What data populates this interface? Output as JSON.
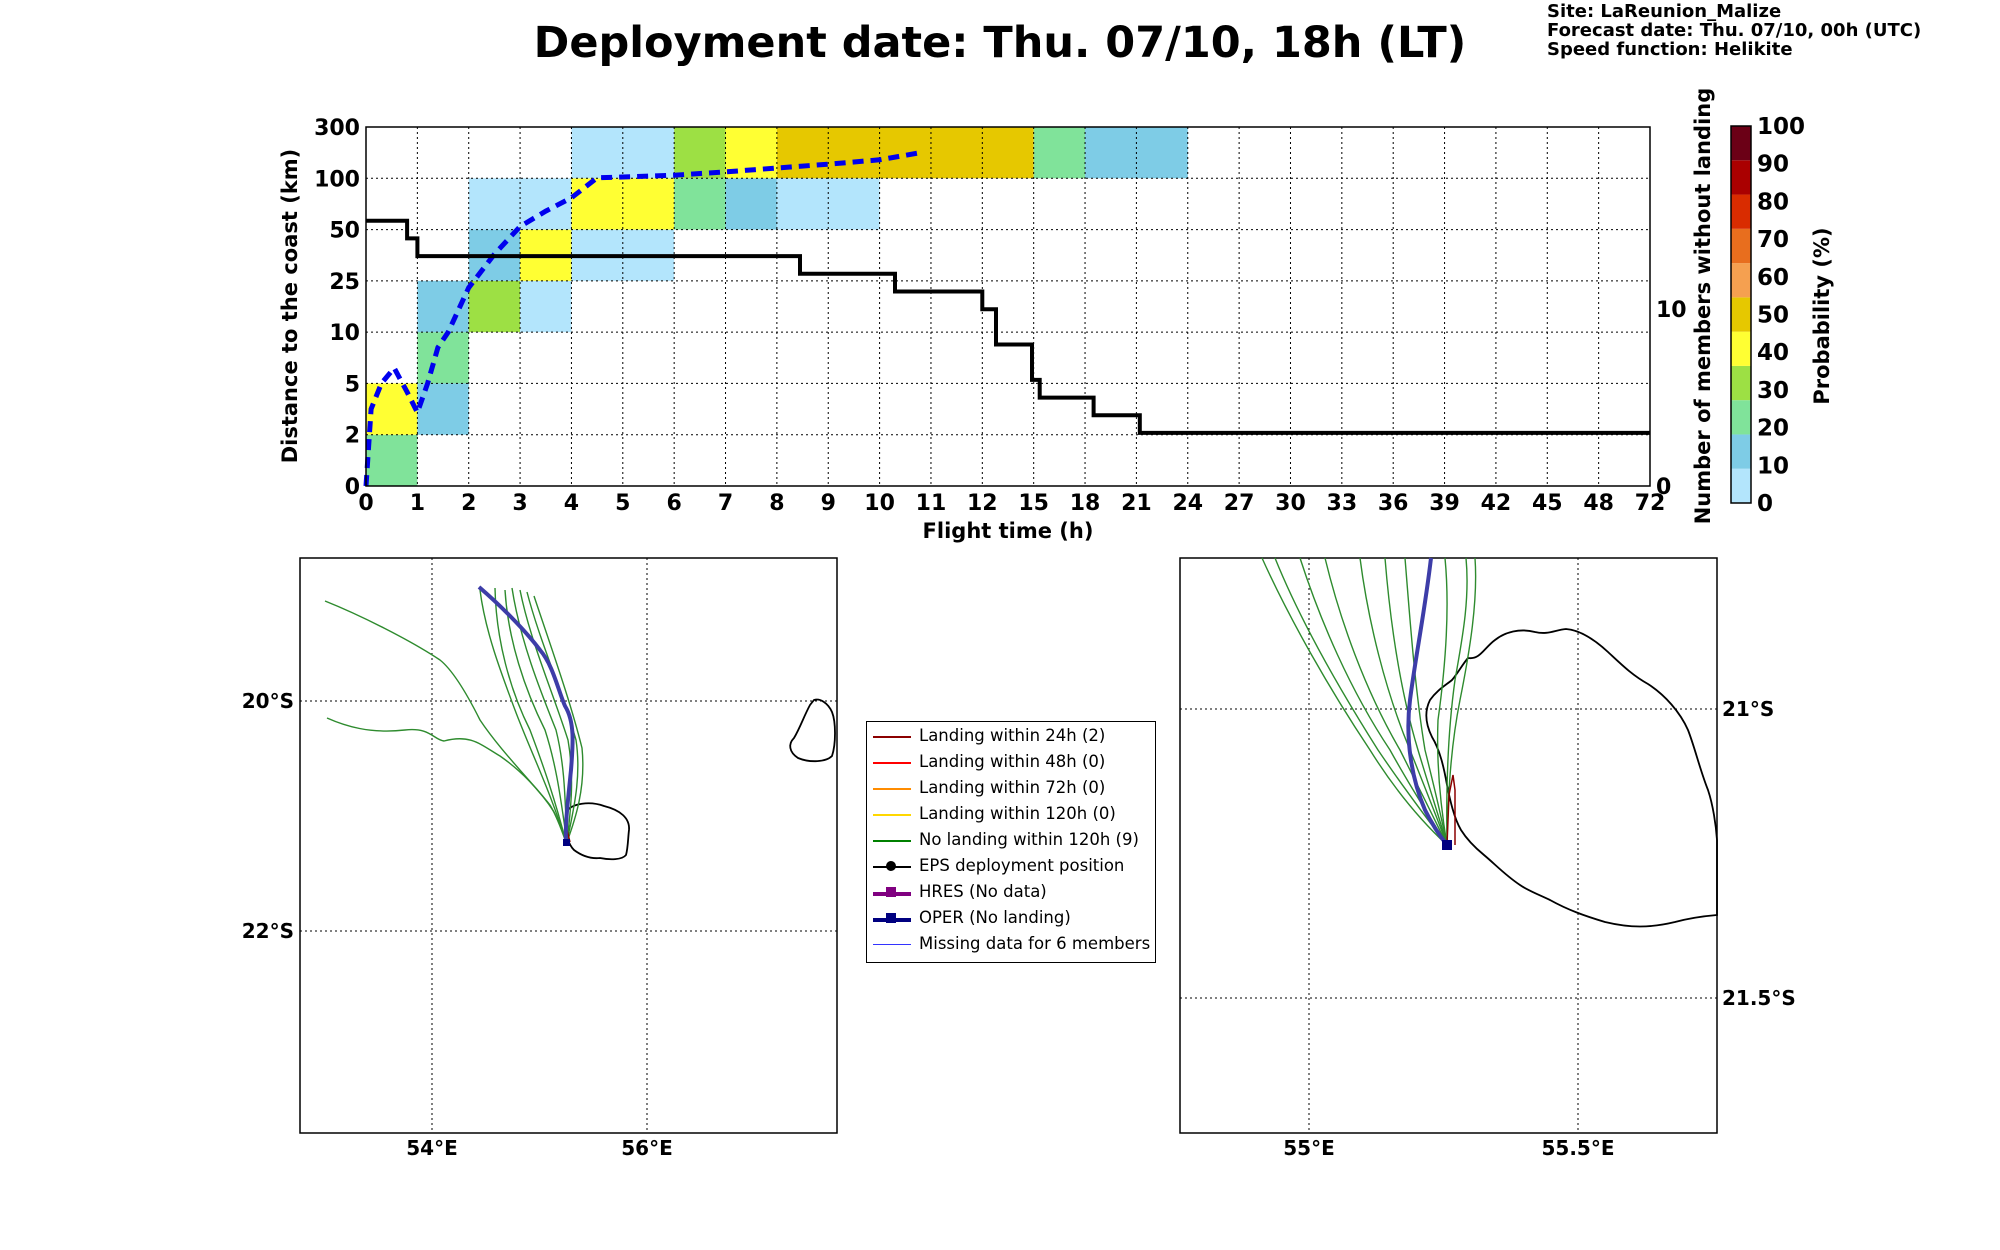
{
  "header": {
    "title": "Deployment date: Thu. 07/10, 18h (LT)",
    "site": "Site: LaReunion_Malize",
    "forecast": "Forecast date: Thu. 07/10, 00h (UTC)",
    "speed": "Speed function: Helikite"
  },
  "chart_data": [
    {
      "type": "heatmap",
      "xlabel": "Flight time (h)",
      "ylabel": "Distance to the coast (km)",
      "y2label": "Number of members without landing",
      "x_ticks": [
        "0",
        "1",
        "2",
        "3",
        "4",
        "5",
        "6",
        "7",
        "8",
        "9",
        "10",
        "11",
        "12",
        "15",
        "18",
        "21",
        "24",
        "27",
        "30",
        "33",
        "36",
        "39",
        "42",
        "45",
        "48",
        "72"
      ],
      "y_ticks": [
        "0",
        "2",
        "5",
        "10",
        "25",
        "50",
        "100",
        "300"
      ],
      "y2_ticks": [
        "0",
        "10"
      ],
      "colorbar": {
        "label": "Probability (%)",
        "ticks": [
          "0",
          "10",
          "20",
          "30",
          "40",
          "50",
          "60",
          "70",
          "80",
          "90",
          "100"
        ],
        "colors": [
          "#b3e5fc",
          "#7ecce6",
          "#80e39a",
          "#9de044",
          "#ffff33",
          "#e6c800",
          "#f5a050",
          "#e86e1e",
          "#d92c00",
          "#aa0000",
          "#6b0016"
        ]
      },
      "cells": [
        {
          "x": [
            0,
            1
          ],
          "y": [
            0,
            2
          ],
          "prob_bin": "20-30"
        },
        {
          "x": [
            0,
            1
          ],
          "y": [
            2,
            5
          ],
          "prob_bin": "40-50"
        },
        {
          "x": [
            1,
            2
          ],
          "y": [
            2,
            5
          ],
          "prob_bin": "10-20"
        },
        {
          "x": [
            1,
            2
          ],
          "y": [
            5,
            10
          ],
          "prob_bin": "20-30"
        },
        {
          "x": [
            1,
            2
          ],
          "y": [
            10,
            25
          ],
          "prob_bin": "10-20"
        },
        {
          "x": [
            2,
            3
          ],
          "y": [
            10,
            25
          ],
          "prob_bin": "30-40"
        },
        {
          "x": [
            3,
            4
          ],
          "y": [
            10,
            25
          ],
          "prob_bin": "0-10"
        },
        {
          "x": [
            2,
            3
          ],
          "y": [
            25,
            50
          ],
          "prob_bin": "10-20"
        },
        {
          "x": [
            3,
            4
          ],
          "y": [
            25,
            50
          ],
          "prob_bin": "40-50"
        },
        {
          "x": [
            4,
            6
          ],
          "y": [
            25,
            50
          ],
          "prob_bin": "0-10"
        },
        {
          "x": [
            2,
            4
          ],
          "y": [
            50,
            100
          ],
          "prob_bin": "0-10"
        },
        {
          "x": [
            4,
            6
          ],
          "y": [
            50,
            100
          ],
          "prob_bin": "40-50"
        },
        {
          "x": [
            6,
            7
          ],
          "y": [
            50,
            100
          ],
          "prob_bin": "20-30"
        },
        {
          "x": [
            7,
            8
          ],
          "y": [
            50,
            100
          ],
          "prob_bin": "10-20"
        },
        {
          "x": [
            8,
            10
          ],
          "y": [
            50,
            100
          ],
          "prob_bin": "0-10"
        },
        {
          "x": [
            4,
            6
          ],
          "y": [
            100,
            300
          ],
          "prob_bin": "0-10"
        },
        {
          "x": [
            6,
            7
          ],
          "y": [
            100,
            300
          ],
          "prob_bin": "30-40"
        },
        {
          "x": [
            7,
            8
          ],
          "y": [
            100,
            300
          ],
          "prob_bin": "40-50"
        },
        {
          "x": [
            8,
            15
          ],
          "y": [
            100,
            300
          ],
          "prob_bin": "50-60"
        },
        {
          "x": [
            15,
            18
          ],
          "y": [
            100,
            300
          ],
          "prob_bin": "20-30"
        },
        {
          "x": [
            18,
            24
          ],
          "y": [
            100,
            300
          ],
          "prob_bin": "10-20"
        }
      ],
      "mean_distance_dashed": [
        {
          "x": 0,
          "y": 0
        },
        {
          "x": 0.1,
          "y": 3.5
        },
        {
          "x": 0.3,
          "y": 5
        },
        {
          "x": 0.55,
          "y": 6.5
        },
        {
          "x": 0.8,
          "y": 4.5
        },
        {
          "x": 1,
          "y": 3.3
        },
        {
          "x": 1.2,
          "y": 5
        },
        {
          "x": 1.4,
          "y": 8.5
        },
        {
          "x": 1.6,
          "y": 10
        },
        {
          "x": 2,
          "y": 23
        },
        {
          "x": 2.5,
          "y": 38
        },
        {
          "x": 3,
          "y": 53
        },
        {
          "x": 3.5,
          "y": 68
        },
        {
          "x": 4,
          "y": 81
        },
        {
          "x": 4.5,
          "y": 102
        },
        {
          "x": 5,
          "y": 105
        },
        {
          "x": 6,
          "y": 112
        },
        {
          "x": 7,
          "y": 125
        },
        {
          "x": 8,
          "y": 140
        },
        {
          "x": 9,
          "y": 155
        },
        {
          "x": 10,
          "y": 172
        },
        {
          "x": 10.8,
          "y": 200
        }
      ],
      "members_without_landing": [
        {
          "x": 0,
          "y": 15
        },
        {
          "x": 0.8,
          "y": 15
        },
        {
          "x": 0.8,
          "y": 14
        },
        {
          "x": 1,
          "y": 14
        },
        {
          "x": 1,
          "y": 13
        },
        {
          "x": 8.45,
          "y": 13
        },
        {
          "x": 8.45,
          "y": 12
        },
        {
          "x": 10.3,
          "y": 12
        },
        {
          "x": 10.3,
          "y": 11
        },
        {
          "x": 12,
          "y": 11
        },
        {
          "x": 12,
          "y": 10
        },
        {
          "x": 12.8,
          "y": 10
        },
        {
          "x": 12.8,
          "y": 8
        },
        {
          "x": 14.9,
          "y": 8
        },
        {
          "x": 14.9,
          "y": 6
        },
        {
          "x": 15.35,
          "y": 6
        },
        {
          "x": 15.35,
          "y": 5
        },
        {
          "x": 18.5,
          "y": 5
        },
        {
          "x": 18.5,
          "y": 4
        },
        {
          "x": 21.2,
          "y": 4
        },
        {
          "x": 21.2,
          "y": 3
        },
        {
          "x": 72,
          "y": 3
        }
      ]
    },
    {
      "type": "scatter",
      "map": "large",
      "x_ticks": [
        "54°E",
        "56°E"
      ],
      "y_ticks": [
        "20°S",
        "22°S"
      ],
      "xlim": [
        52.76,
        57.76
      ],
      "ylim": [
        23.86,
        18.86
      ]
    },
    {
      "type": "scatter",
      "map": "zoom",
      "x_ticks": [
        "55°E",
        "55.5°E"
      ],
      "y_ticks": [
        "21°S",
        "21.5°S"
      ],
      "xlim": [
        54.76,
        55.76
      ],
      "ylim": [
        21.74,
        20.74
      ]
    }
  ],
  "legend": [
    {
      "label": "Landing within 24h (2)",
      "color": "#8b0000",
      "style": "line"
    },
    {
      "label": "Landing within 48h (0)",
      "color": "#ff0000",
      "style": "line"
    },
    {
      "label": "Landing within 72h (0)",
      "color": "#ff8c00",
      "style": "line"
    },
    {
      "label": "Landing within 120h (0)",
      "color": "#ffd700",
      "style": "line"
    },
    {
      "label": "No landing within 120h (9)",
      "color": "#008000",
      "style": "line"
    },
    {
      "label": "EPS deployment position",
      "color": "#000000",
      "style": "circle"
    },
    {
      "label": "HRES (No data)",
      "color": "#800080",
      "style": "square"
    },
    {
      "label": "OPER (No landing)",
      "color": "#000080",
      "style": "square"
    },
    {
      "label": "Missing data for 6 members",
      "color": "#3333ff",
      "style": "thin"
    }
  ]
}
